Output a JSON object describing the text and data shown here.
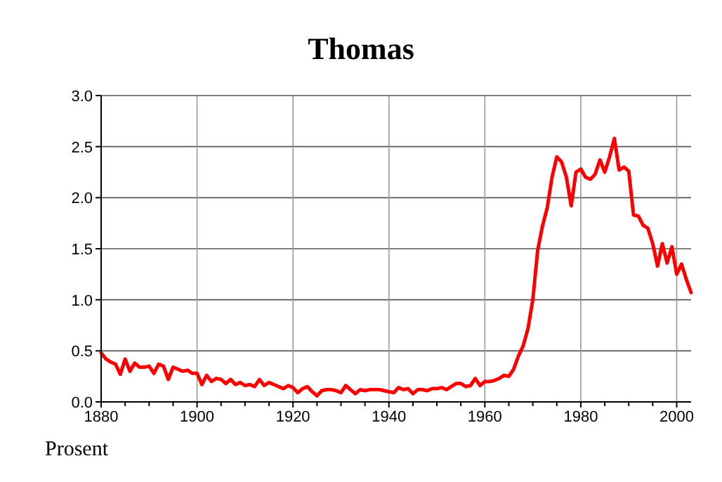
{
  "chart_data": {
    "type": "line",
    "title": "Thomas",
    "ylabel": "Prosent",
    "x": [
      1880,
      1881,
      1882,
      1883,
      1884,
      1885,
      1886,
      1887,
      1888,
      1889,
      1890,
      1891,
      1892,
      1893,
      1894,
      1895,
      1896,
      1897,
      1898,
      1899,
      1900,
      1901,
      1902,
      1903,
      1904,
      1905,
      1906,
      1907,
      1908,
      1909,
      1910,
      1911,
      1912,
      1913,
      1914,
      1915,
      1916,
      1917,
      1918,
      1919,
      1920,
      1921,
      1922,
      1923,
      1924,
      1925,
      1926,
      1927,
      1928,
      1929,
      1930,
      1931,
      1932,
      1933,
      1934,
      1935,
      1936,
      1937,
      1938,
      1939,
      1940,
      1941,
      1942,
      1943,
      1944,
      1945,
      1946,
      1947,
      1948,
      1949,
      1950,
      1951,
      1952,
      1953,
      1954,
      1955,
      1956,
      1957,
      1958,
      1959,
      1960,
      1961,
      1962,
      1963,
      1964,
      1965,
      1966,
      1967,
      1968,
      1969,
      1970,
      1971,
      1972,
      1973,
      1974,
      1975,
      1976,
      1977,
      1978,
      1979,
      1980,
      1981,
      1982,
      1983,
      1984,
      1985,
      1986,
      1987,
      1988,
      1989,
      1990,
      1991,
      1992,
      1993,
      1994,
      1995,
      1996,
      1997,
      1998,
      1999,
      2000,
      2001,
      2002,
      2003
    ],
    "series": [
      {
        "color": "#ff0000",
        "values": [
          0.48,
          0.42,
          0.39,
          0.37,
          0.27,
          0.42,
          0.3,
          0.38,
          0.34,
          0.34,
          0.35,
          0.28,
          0.37,
          0.35,
          0.22,
          0.34,
          0.32,
          0.3,
          0.31,
          0.28,
          0.28,
          0.17,
          0.26,
          0.2,
          0.23,
          0.22,
          0.18,
          0.22,
          0.17,
          0.19,
          0.16,
          0.17,
          0.15,
          0.22,
          0.16,
          0.19,
          0.17,
          0.15,
          0.13,
          0.16,
          0.14,
          0.09,
          0.13,
          0.15,
          0.1,
          0.06,
          0.11,
          0.12,
          0.12,
          0.11,
          0.09,
          0.16,
          0.12,
          0.08,
          0.12,
          0.11,
          0.12,
          0.12,
          0.12,
          0.11,
          0.1,
          0.09,
          0.14,
          0.12,
          0.13,
          0.08,
          0.12,
          0.12,
          0.11,
          0.13,
          0.13,
          0.14,
          0.12,
          0.15,
          0.18,
          0.18,
          0.15,
          0.16,
          0.23,
          0.16,
          0.2,
          0.2,
          0.21,
          0.23,
          0.26,
          0.25,
          0.32,
          0.45,
          0.55,
          0.72,
          1.0,
          1.48,
          1.72,
          1.9,
          2.2,
          2.4,
          2.35,
          2.2,
          1.92,
          2.25,
          2.28,
          2.2,
          2.18,
          2.23,
          2.37,
          2.25,
          2.4,
          2.58,
          2.27,
          2.3,
          2.26,
          1.83,
          1.82,
          1.73,
          1.7,
          1.55,
          1.33,
          1.55,
          1.36,
          1.52,
          1.25,
          1.35,
          1.2,
          1.07
        ]
      }
    ],
    "xlim": [
      1880,
      2003
    ],
    "xticks": [
      1880,
      {
        "value": 1885,
        "label": null
      },
      {
        "value": 1890,
        "label": null
      },
      {
        "value": 1895,
        "label": null
      },
      1900,
      {
        "value": 1905,
        "label": null
      },
      {
        "value": 1910,
        "label": null
      },
      {
        "value": 1915,
        "label": null
      },
      1920,
      {
        "value": 1925,
        "label": null
      },
      {
        "value": 1930,
        "label": null
      },
      {
        "value": 1935,
        "label": null
      },
      1940,
      {
        "value": 1945,
        "label": null
      },
      {
        "value": 1950,
        "label": null
      },
      {
        "value": 1955,
        "label": null
      },
      1960,
      {
        "value": 1965,
        "label": null
      },
      {
        "value": 1970,
        "label": null
      },
      {
        "value": 1975,
        "label": null
      },
      1980,
      {
        "value": 1985,
        "label": null
      },
      {
        "value": 1990,
        "label": null
      },
      {
        "value": 1995,
        "label": null
      },
      2000
    ],
    "ylim": [
      0,
      3
    ],
    "yticks": [
      {
        "value": 0,
        "label": "0.0"
      },
      {
        "value": 0.5,
        "label": "0.5"
      },
      {
        "value": 1,
        "label": "1.0"
      },
      {
        "value": 1.5,
        "label": "1.5"
      },
      {
        "value": 2,
        "label": "2.0"
      },
      {
        "value": 2.5,
        "label": "2.5"
      },
      {
        "value": 3,
        "label": "3.0"
      }
    ],
    "grid": true,
    "marker": "none",
    "line_style": "solid"
  }
}
